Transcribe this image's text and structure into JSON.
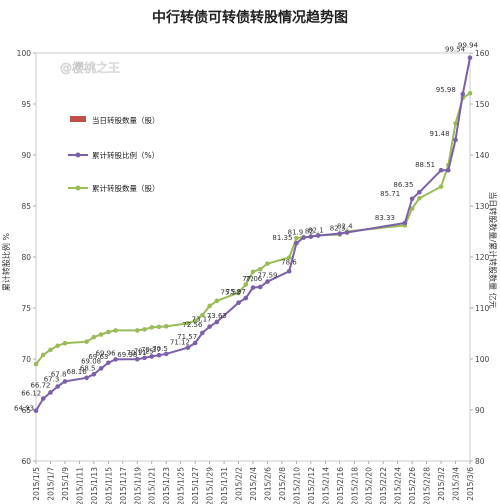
{
  "chart_data": {
    "type": "line",
    "title": "中行转债可转债转股情况趋势图",
    "watermark": "@樱桃之王",
    "ylabel_left": "累计转股比例 %",
    "ylabel_right": "当日转股数量/累计转股数量 亿元",
    "ylim_left": [
      60,
      100
    ],
    "yticks_left": [
      "60",
      "65",
      "70",
      "75",
      "80",
      "85",
      "90",
      "95",
      "100"
    ],
    "ylim_right": [
      80,
      160
    ],
    "yticks_right": [
      "80",
      "90",
      "100",
      "110",
      "120",
      "130",
      "140",
      "150",
      "160"
    ],
    "xtick_labels": [
      "2015/1/5",
      "2015/1/7",
      "2015/1/9",
      "2015/1/11",
      "2015/1/13",
      "2015/1/15",
      "2015/1/17",
      "2015/1/19",
      "2015/1/21",
      "2015/1/23",
      "2015/1/25",
      "2015/1/27",
      "2015/1/29",
      "2015/1/31",
      "2015/2/2",
      "2015/2/4",
      "2015/2/6",
      "2015/2/8",
      "2015/2/10",
      "2015/2/12",
      "2015/2/14",
      "2015/2/16",
      "2015/2/18",
      "2015/2/20",
      "2015/2/22",
      "2015/2/24",
      "2015/2/26",
      "2015/2/28",
      "2015/3/2",
      "2015/3/4",
      "2015/3/6"
    ],
    "legend": [
      {
        "label": "当日转股数量（股）",
        "color": "#c0504d",
        "marker": "bar"
      },
      {
        "label": "累计转股比例（%）",
        "color": "#7b5fa8",
        "marker": "line-dot"
      },
      {
        "label": "累计转股数量（股）",
        "color": "#9bbb59",
        "marker": "line-dot"
      }
    ],
    "series": [
      {
        "name": "累计转股比例（%）",
        "axis": "left",
        "color": "#7b5fa8",
        "x": [
          "2015/1/5",
          "2015/1/6",
          "2015/1/7",
          "2015/1/8",
          "2015/1/9",
          "2015/1/12",
          "2015/1/13",
          "2015/1/14",
          "2015/1/15",
          "2015/1/16",
          "2015/1/19",
          "2015/1/20",
          "2015/1/21",
          "2015/1/22",
          "2015/1/23",
          "2015/1/26",
          "2015/1/27",
          "2015/1/28",
          "2015/1/29",
          "2015/1/30",
          "2015/2/2",
          "2015/2/3",
          "2015/2/4",
          "2015/2/5",
          "2015/2/6",
          "2015/2/9",
          "2015/2/10",
          "2015/2/11",
          "2015/2/12",
          "2015/2/13",
          "2015/2/16",
          "2015/2/17",
          "2015/2/25",
          "2015/2/26",
          "2015/2/27",
          "2015/3/2",
          "2015/3/3",
          "2015/3/4",
          "2015/3/5",
          "2015/3/6"
        ],
        "values": [
          64.93,
          66.12,
          66.72,
          67.3,
          67.8,
          68.16,
          68.5,
          69.08,
          69.63,
          69.96,
          69.98,
          70.11,
          70.25,
          70.37,
          70.5,
          71.12,
          71.57,
          72.56,
          73.17,
          73.63,
          75.52,
          75.97,
          77.0,
          77.06,
          77.59,
          78.6,
          81.35,
          81.9,
          82.0,
          82.1,
          82.3,
          82.4,
          83.33,
          85.71,
          86.35,
          88.51,
          88.51,
          91.48,
          95.98,
          99.54
        ],
        "labels": [
          {
            "text": "64.93",
            "i": 0,
            "dx": -22,
            "dy": 0
          },
          {
            "text": "66.12",
            "i": 1,
            "dx": -22,
            "dy": -3
          },
          {
            "text": "66.72",
            "i": 2,
            "dx": -20,
            "dy": -5
          },
          {
            "text": "67.3",
            "i": 3,
            "dx": -14,
            "dy": -5
          },
          {
            "text": "67.8",
            "i": 4,
            "dx": -14,
            "dy": -5
          },
          {
            "text": "68.16",
            "i": 5,
            "dx": -20,
            "dy": -4
          },
          {
            "text": "68.5",
            "i": 6,
            "dx": -14,
            "dy": -4
          },
          {
            "text": "69.08",
            "i": 7,
            "dx": -20,
            "dy": -5
          },
          {
            "text": "69.63",
            "i": 8,
            "dx": -20,
            "dy": -4
          },
          {
            "text": "69.96",
            "i": 9,
            "dx": -20,
            "dy": -4
          },
          {
            "text": "69.98",
            "i": 10,
            "dx": -20,
            "dy": -2
          },
          {
            "text": "70.11",
            "i": 11,
            "dx": -18,
            "dy": -3
          },
          {
            "text": "70.25",
            "i": 12,
            "dx": -18,
            "dy": -3
          },
          {
            "text": "70.37",
            "i": 13,
            "dx": -18,
            "dy": -3
          },
          {
            "text": "70.5",
            "i": 14,
            "dx": -14,
            "dy": -3
          },
          {
            "text": "71.12",
            "i": 15,
            "dx": -18,
            "dy": -3
          },
          {
            "text": "71.57",
            "i": 16,
            "dx": -18,
            "dy": -4
          },
          {
            "text": "72.56",
            "i": 17,
            "dx": -20,
            "dy": -6
          },
          {
            "text": "73.17",
            "i": 18,
            "dx": -18,
            "dy": -5
          },
          {
            "text": "73.63",
            "i": 19,
            "dx": -10,
            "dy": -4
          },
          {
            "text": "75.52",
            "i": 20,
            "dx": -18,
            "dy": -8
          },
          {
            "text": "75.97",
            "i": 21,
            "dx": -20,
            "dy": -4
          },
          {
            "text": "77",
            "i": 22,
            "dx": -8,
            "dy": -6
          },
          {
            "text": "77.06",
            "i": 23,
            "dx": -18,
            "dy": -6
          },
          {
            "text": "77.59",
            "i": 24,
            "dx": -10,
            "dy": -4
          },
          {
            "text": "78.6",
            "i": 25,
            "dx": -8,
            "dy": -7
          },
          {
            "text": "81.35",
            "i": 26,
            "dx": -24,
            "dy": -3
          },
          {
            "text": "81.9",
            "i": 27,
            "dx": -16,
            "dy": -3
          },
          {
            "text": "82",
            "i": 28,
            "dx": -6,
            "dy": -3
          },
          {
            "text": "82.1",
            "i": 29,
            "dx": -10,
            "dy": -3
          },
          {
            "text": "82.3",
            "i": 30,
            "dx": -10,
            "dy": -3
          },
          {
            "text": "82.4",
            "i": 31,
            "dx": -10,
            "dy": -4
          },
          {
            "text": "83.33",
            "i": 32,
            "dx": -30,
            "dy": -3
          },
          {
            "text": "85.71",
            "i": 33,
            "dx": -32,
            "dy": -3
          },
          {
            "text": "86.35",
            "i": 34,
            "dx": -26,
            "dy": -5
          },
          {
            "text": "88.51",
            "i": 35,
            "dx": -26,
            "dy": -3
          },
          {
            "text": "91.48",
            "i": 37,
            "dx": -26,
            "dy": -4
          },
          {
            "text": "95.98",
            "i": 38,
            "dx": -27,
            "dy": -2
          },
          {
            "text": "99.54",
            "i": 39,
            "dx": -25,
            "dy": -6
          }
        ]
      },
      {
        "name": "累计转股数量（股）",
        "axis": "right",
        "color": "#9bbb59",
        "x": [
          "2015/1/5",
          "2015/1/6",
          "2015/1/7",
          "2015/1/8",
          "2015/1/9",
          "2015/1/12",
          "2015/1/13",
          "2015/1/14",
          "2015/1/15",
          "2015/1/16",
          "2015/1/19",
          "2015/1/20",
          "2015/1/21",
          "2015/1/22",
          "2015/1/23",
          "2015/1/26",
          "2015/1/27",
          "2015/1/28",
          "2015/1/29",
          "2015/1/30",
          "2015/2/2",
          "2015/2/3",
          "2015/2/4",
          "2015/2/5",
          "2015/2/6",
          "2015/2/9",
          "2015/2/10",
          "2015/2/11",
          "2015/2/12",
          "2015/2/13",
          "2015/2/16",
          "2015/2/17",
          "2015/2/25",
          "2015/2/26",
          "2015/2/27",
          "2015/3/2",
          "2015/3/3",
          "2015/3/4",
          "2015/3/5",
          "2015/3/6"
        ],
        "values": [
          99.0,
          100.8,
          101.8,
          102.6,
          103.1,
          103.4,
          104.3,
          104.8,
          105.3,
          105.6,
          105.6,
          105.8,
          106.2,
          106.3,
          106.4,
          107.0,
          107.5,
          108.6,
          110.4,
          111.4,
          113.0,
          114.6,
          117.1,
          117.6,
          118.7,
          119.9,
          123.7,
          123.9,
          124.0,
          124.3,
          124.4,
          125.0,
          126.2,
          129.5,
          131.5,
          133.8,
          138.0,
          146.2,
          151.2,
          152.1
        ]
      }
    ]
  }
}
